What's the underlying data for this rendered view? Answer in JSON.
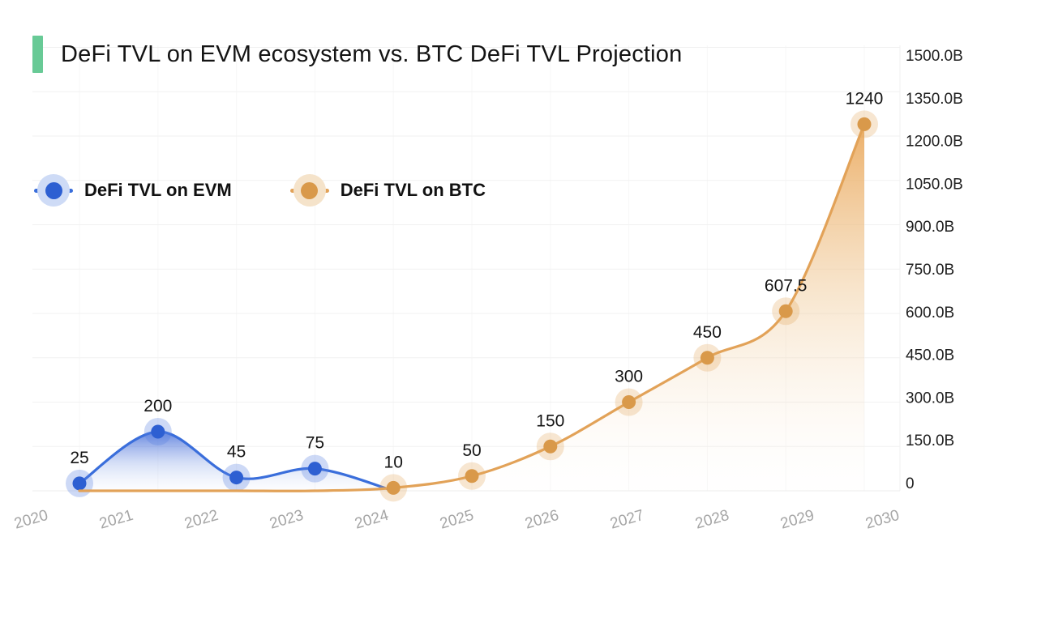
{
  "title": {
    "text": "DeFi TVL on EVM ecosystem vs. BTC DeFi TVL Projection",
    "accent_color": "#68ca96"
  },
  "legend": {
    "items": [
      {
        "label": "DeFi TVL on EVM",
        "line_color": "#3a6edb",
        "dot_color": "#2d5fd2",
        "halo_color": "#cedbf6"
      },
      {
        "label": "DeFi TVL on BTC",
        "line_color": "#e2a258",
        "dot_color": "#d9994a",
        "halo_color": "#f5e3ca"
      }
    ]
  },
  "chart_data": {
    "type": "line",
    "x": [
      2020,
      2021,
      2022,
      2023,
      2024,
      2025,
      2026,
      2027,
      2028,
      2029,
      2030
    ],
    "x_labels": [
      "2020",
      "2021",
      "2022",
      "2023",
      "2024",
      "2025",
      "2026",
      "2027",
      "2028",
      "2029",
      "2030"
    ],
    "series": [
      {
        "name": "DeFi TVL on EVM",
        "values": [
          25,
          200,
          45,
          75,
          0,
          null,
          null,
          null,
          null,
          null,
          null
        ],
        "point_labels": [
          "25",
          "200",
          "45",
          "75",
          null,
          null,
          null,
          null,
          null,
          null,
          null
        ],
        "line_color": "#3a6edb",
        "point_color": "#2d5fd2",
        "halo_color": "rgba(90,130,225,0.30)",
        "fill_top": "rgba(64,105,215,0.80)",
        "fill_mid": "rgba(122,152,228,0.32)",
        "fill_bottom": "rgba(190,208,242,0.04)"
      },
      {
        "name": "DeFi TVL on BTC",
        "values": [
          0,
          0,
          0,
          0,
          10,
          50,
          150,
          300,
          450,
          607.5,
          1240
        ],
        "point_labels": [
          null,
          null,
          null,
          null,
          "10",
          "50",
          "150",
          "300",
          "450",
          "607.5",
          "1240"
        ],
        "line_color": "#e2a258",
        "point_color": "#d9994a",
        "halo_color": "rgba(225,165,90,0.28)",
        "fill_top": "rgba(233,164,84,0.88)",
        "fill_mid": "rgba(240,201,150,0.38)",
        "fill_bottom": "rgba(252,246,239,0.04)"
      }
    ],
    "y_ticks": [
      "0",
      "150.0B",
      "300.0B",
      "450.0B",
      "600.0B",
      "750.0B",
      "900.0B",
      "1050.0B",
      "1200.0B",
      "1350.0B",
      "1500.0B"
    ],
    "ylim": [
      0,
      1500
    ],
    "y_axis_position": "right",
    "x_label_rotation": -16,
    "grid": true,
    "legend_position": "middle-left",
    "grid_color": "#f0f0f0"
  }
}
